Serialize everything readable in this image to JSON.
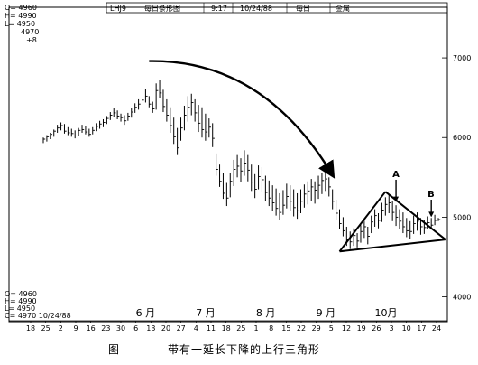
{
  "header": {
    "symbol": "LHJ9",
    "chart_kind": "每日条形图",
    "time": "9:17",
    "date": "10/24/88",
    "period": "每日",
    "commodity": "金属"
  },
  "readout_top": [
    "O= 4960",
    "H= 4990",
    "L= 4950",
    "4970",
    "+8"
  ],
  "readout_bottom": [
    "O= 4960",
    "H= 4990",
    "L= 4950",
    "C= 4970 10/24/88"
  ],
  "caption": {
    "figure_label": "图",
    "title": "带有一延长下降的上行三角形"
  },
  "colors": {
    "ink": "#000000",
    "background": "#ffffff"
  },
  "chart_data": {
    "type": "bar",
    "subtype": "ohlc-daily",
    "title": "",
    "xlabel": "",
    "ylabel": "",
    "y_axis_side": "right",
    "ylim": [
      3700,
      7500
    ],
    "y_ticks": [
      4000,
      5000,
      6000,
      7000
    ],
    "grid": false,
    "legend": "none",
    "date_ticks": [
      "18",
      "25",
      "2",
      "9",
      "16",
      "23",
      "30",
      "6",
      "13",
      "20",
      "27",
      "4",
      "11",
      "18",
      "25",
      "1",
      "8",
      "15",
      "22",
      "29",
      "5",
      "12",
      "19",
      "26",
      "3",
      "10",
      "17",
      "24"
    ],
    "month_labels": [
      {
        "label": "6 月",
        "at_tick": 8
      },
      {
        "label": "7 月",
        "at_tick": 12
      },
      {
        "label": "8 月",
        "at_tick": 16
      },
      {
        "label": "9 月",
        "at_tick": 20
      },
      {
        "label": "10月",
        "at_tick": 24
      }
    ],
    "bars": [
      {
        "h": 6000,
        "l": 5930,
        "c": 5980
      },
      {
        "h": 6030,
        "l": 5950,
        "c": 6010
      },
      {
        "h": 6060,
        "l": 5980,
        "c": 6040
      },
      {
        "h": 6100,
        "l": 6010,
        "c": 6080
      },
      {
        "h": 6160,
        "l": 6060,
        "c": 6120
      },
      {
        "h": 6190,
        "l": 6090,
        "c": 6150
      },
      {
        "h": 6170,
        "l": 6050,
        "c": 6080
      },
      {
        "h": 6130,
        "l": 6030,
        "c": 6060
      },
      {
        "h": 6110,
        "l": 6010,
        "c": 6050
      },
      {
        "h": 6090,
        "l": 5990,
        "c": 6020
      },
      {
        "h": 6120,
        "l": 6020,
        "c": 6090
      },
      {
        "h": 6160,
        "l": 6060,
        "c": 6100
      },
      {
        "h": 6140,
        "l": 6040,
        "c": 6070
      },
      {
        "h": 6110,
        "l": 6010,
        "c": 6040
      },
      {
        "h": 6130,
        "l": 6040,
        "c": 6090
      },
      {
        "h": 6180,
        "l": 6080,
        "c": 6140
      },
      {
        "h": 6210,
        "l": 6110,
        "c": 6170
      },
      {
        "h": 6230,
        "l": 6130,
        "c": 6190
      },
      {
        "h": 6270,
        "l": 6170,
        "c": 6240
      },
      {
        "h": 6320,
        "l": 6220,
        "c": 6280
      },
      {
        "h": 6370,
        "l": 6260,
        "c": 6310
      },
      {
        "h": 6340,
        "l": 6230,
        "c": 6270
      },
      {
        "h": 6300,
        "l": 6200,
        "c": 6250
      },
      {
        "h": 6280,
        "l": 6160,
        "c": 6210
      },
      {
        "h": 6310,
        "l": 6210,
        "c": 6270
      },
      {
        "h": 6370,
        "l": 6250,
        "c": 6320
      },
      {
        "h": 6430,
        "l": 6310,
        "c": 6380
      },
      {
        "h": 6480,
        "l": 6350,
        "c": 6420
      },
      {
        "h": 6560,
        "l": 6400,
        "c": 6470
      },
      {
        "h": 6610,
        "l": 6440,
        "c": 6520
      },
      {
        "h": 6520,
        "l": 6380,
        "c": 6420
      },
      {
        "h": 6450,
        "l": 6310,
        "c": 6360
      },
      {
        "h": 6680,
        "l": 6350,
        "c": 6590
      },
      {
        "h": 6720,
        "l": 6500,
        "c": 6560
      },
      {
        "h": 6600,
        "l": 6320,
        "c": 6390
      },
      {
        "h": 6480,
        "l": 6200,
        "c": 6280
      },
      {
        "h": 6380,
        "l": 6060,
        "c": 6150
      },
      {
        "h": 6250,
        "l": 5920,
        "c": 6010
      },
      {
        "h": 6120,
        "l": 5780,
        "c": 5870
      },
      {
        "h": 6250,
        "l": 5960,
        "c": 6120
      },
      {
        "h": 6400,
        "l": 6090,
        "c": 6280
      },
      {
        "h": 6520,
        "l": 6200,
        "c": 6380
      },
      {
        "h": 6550,
        "l": 6280,
        "c": 6440
      },
      {
        "h": 6480,
        "l": 6200,
        "c": 6310
      },
      {
        "h": 6410,
        "l": 6070,
        "c": 6180
      },
      {
        "h": 6380,
        "l": 6000,
        "c": 6100
      },
      {
        "h": 6300,
        "l": 5960,
        "c": 6070
      },
      {
        "h": 6240,
        "l": 6000,
        "c": 6130
      },
      {
        "h": 6180,
        "l": 5880,
        "c": 5990
      },
      {
        "h": 5800,
        "l": 5520,
        "c": 5600
      },
      {
        "h": 5660,
        "l": 5380,
        "c": 5450
      },
      {
        "h": 5560,
        "l": 5230,
        "c": 5300
      },
      {
        "h": 5430,
        "l": 5140,
        "c": 5240
      },
      {
        "h": 5560,
        "l": 5250,
        "c": 5450
      },
      {
        "h": 5720,
        "l": 5390,
        "c": 5600
      },
      {
        "h": 5780,
        "l": 5500,
        "c": 5640
      },
      {
        "h": 5740,
        "l": 5440,
        "c": 5580
      },
      {
        "h": 5840,
        "l": 5520,
        "c": 5680
      },
      {
        "h": 5780,
        "l": 5450,
        "c": 5590
      },
      {
        "h": 5660,
        "l": 5330,
        "c": 5440
      },
      {
        "h": 5540,
        "l": 5240,
        "c": 5350
      },
      {
        "h": 5650,
        "l": 5350,
        "c": 5510
      },
      {
        "h": 5630,
        "l": 5310,
        "c": 5470
      },
      {
        "h": 5520,
        "l": 5200,
        "c": 5310
      },
      {
        "h": 5460,
        "l": 5140,
        "c": 5240
      },
      {
        "h": 5400,
        "l": 5080,
        "c": 5180
      },
      {
        "h": 5360,
        "l": 5020,
        "c": 5110
      },
      {
        "h": 5300,
        "l": 4960,
        "c": 5060
      },
      {
        "h": 5340,
        "l": 5030,
        "c": 5150
      },
      {
        "h": 5420,
        "l": 5110,
        "c": 5260
      },
      {
        "h": 5400,
        "l": 5080,
        "c": 5200
      },
      {
        "h": 5350,
        "l": 5010,
        "c": 5120
      },
      {
        "h": 5300,
        "l": 4980,
        "c": 5080
      },
      {
        "h": 5350,
        "l": 5050,
        "c": 5200
      },
      {
        "h": 5410,
        "l": 5120,
        "c": 5290
      },
      {
        "h": 5450,
        "l": 5160,
        "c": 5330
      },
      {
        "h": 5480,
        "l": 5200,
        "c": 5380
      },
      {
        "h": 5450,
        "l": 5170,
        "c": 5340
      },
      {
        "h": 5520,
        "l": 5230,
        "c": 5400
      },
      {
        "h": 5550,
        "l": 5290,
        "c": 5460
      },
      {
        "h": 5570,
        "l": 5330,
        "c": 5480
      },
      {
        "h": 5500,
        "l": 5260,
        "c": 5380
      },
      {
        "h": 5350,
        "l": 5100,
        "c": 5200
      },
      {
        "h": 5220,
        "l": 4960,
        "c": 5050
      },
      {
        "h": 5100,
        "l": 4850,
        "c": 4920
      },
      {
        "h": 5000,
        "l": 4760,
        "c": 4830
      },
      {
        "h": 4880,
        "l": 4640,
        "c": 4720
      },
      {
        "h": 4820,
        "l": 4600,
        "c": 4690
      },
      {
        "h": 4860,
        "l": 4640,
        "c": 4770
      },
      {
        "h": 4800,
        "l": 4620,
        "c": 4700
      },
      {
        "h": 4900,
        "l": 4680,
        "c": 4820
      },
      {
        "h": 4960,
        "l": 4740,
        "c": 4880
      },
      {
        "h": 4880,
        "l": 4660,
        "c": 4760
      },
      {
        "h": 5020,
        "l": 4800,
        "c": 4940
      },
      {
        "h": 5100,
        "l": 4880,
        "c": 5020
      },
      {
        "h": 5050,
        "l": 4860,
        "c": 4960
      },
      {
        "h": 5180,
        "l": 4940,
        "c": 5090
      },
      {
        "h": 5250,
        "l": 5020,
        "c": 5160
      },
      {
        "h": 5280,
        "l": 5050,
        "c": 5180
      },
      {
        "h": 5200,
        "l": 4950,
        "c": 5060
      },
      {
        "h": 5150,
        "l": 4890,
        "c": 5000
      },
      {
        "h": 5100,
        "l": 4850,
        "c": 4950
      },
      {
        "h": 5060,
        "l": 4800,
        "c": 4880
      },
      {
        "h": 4990,
        "l": 4750,
        "c": 4830
      },
      {
        "h": 4950,
        "l": 4730,
        "c": 4820
      },
      {
        "h": 5020,
        "l": 4790,
        "c": 4920
      },
      {
        "h": 5060,
        "l": 4830,
        "c": 4950
      },
      {
        "h": 4990,
        "l": 4780,
        "c": 4880
      },
      {
        "h": 4960,
        "l": 4790,
        "c": 4870
      },
      {
        "h": 5010,
        "l": 4850,
        "c": 4930
      },
      {
        "h": 4990,
        "l": 4860,
        "c": 4900
      },
      {
        "h": 5030,
        "l": 4900,
        "c": 4960
      },
      {
        "h": 4990,
        "l": 4950,
        "c": 4970
      }
    ],
    "annotations": {
      "triangle": {
        "apex": {
          "bar": 97,
          "value": 5320
        },
        "base_left": {
          "bar": 84,
          "value": 4570
        },
        "base_right": {
          "bar": 114,
          "value": 4720
        }
      },
      "trend_arrow": {
        "from": {
          "bar": 30,
          "value": 6960
        },
        "to": {
          "bar": 82,
          "value": 5530
        }
      },
      "arrows": [
        {
          "label": "A",
          "bar": 100,
          "from_value": 5470,
          "to_value": 5190
        },
        {
          "label": "B",
          "bar": 110,
          "from_value": 5220,
          "to_value": 5000
        }
      ]
    }
  }
}
